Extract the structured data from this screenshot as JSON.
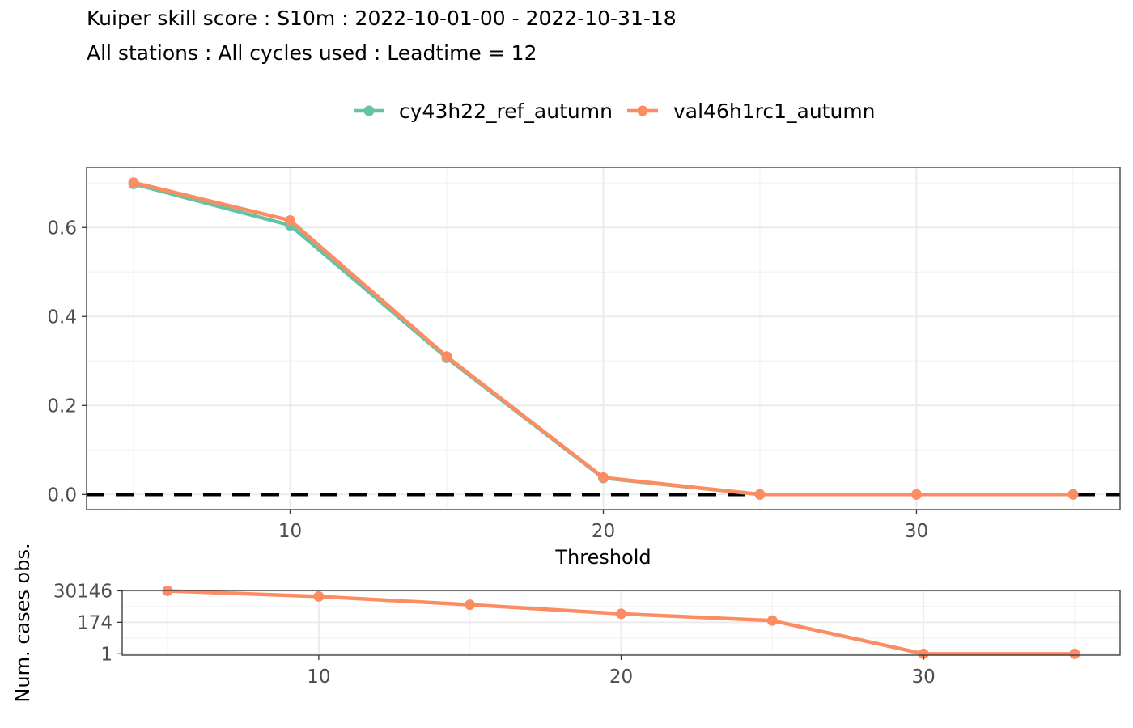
{
  "title": "Kuiper skill score : S10m : 2022-10-01-00 - 2022-10-31-18",
  "subtitle": "All stations : All cycles used : Leadtime = 12",
  "colors": {
    "series1": "#66c2a5",
    "series2": "#fc8d62",
    "zero_line": "#000000"
  },
  "chart_data": [
    {
      "type": "line",
      "xlabel": "Threshold",
      "ylabel": "",
      "xlim": [
        3.5,
        36.5
      ],
      "ylim": [
        -0.034,
        0.735
      ],
      "x_ticks": [
        10,
        20,
        30
      ],
      "y_ticks": [
        0.0,
        0.2,
        0.4,
        0.6
      ],
      "y_tick_labels": [
        "0.0",
        "0.2",
        "0.4",
        "0.6"
      ],
      "grid": true,
      "legend_position": "top",
      "reference_line": {
        "y": 0,
        "style": "dashed"
      },
      "x": [
        5,
        10,
        15,
        20,
        25,
        30,
        35
      ],
      "series": [
        {
          "name": "cy43h22_ref_autumn",
          "values": [
            0.698,
            0.605,
            0.307,
            0.037,
            0.0,
            0.0,
            0.0
          ]
        },
        {
          "name": "val46h1rc1_autumn",
          "values": [
            0.701,
            0.616,
            0.31,
            0.038,
            0.0,
            0.0,
            0.0
          ]
        }
      ]
    },
    {
      "type": "line",
      "xlabel": "",
      "ylabel": "Num. cases obs.",
      "xlim": [
        3.5,
        36.5
      ],
      "y_scale": "log",
      "ylim": [
        0.8,
        32000
      ],
      "x_ticks": [
        10,
        20,
        30
      ],
      "y_ticks": [
        1,
        174,
        30146
      ],
      "y_tick_labels": [
        "1",
        "174",
        "30146"
      ],
      "grid": true,
      "x": [
        5,
        10,
        15,
        20,
        25,
        30,
        35
      ],
      "series": [
        {
          "values": [
            30146,
            12000,
            3100,
            700,
            230,
            1,
            1
          ]
        }
      ]
    }
  ]
}
